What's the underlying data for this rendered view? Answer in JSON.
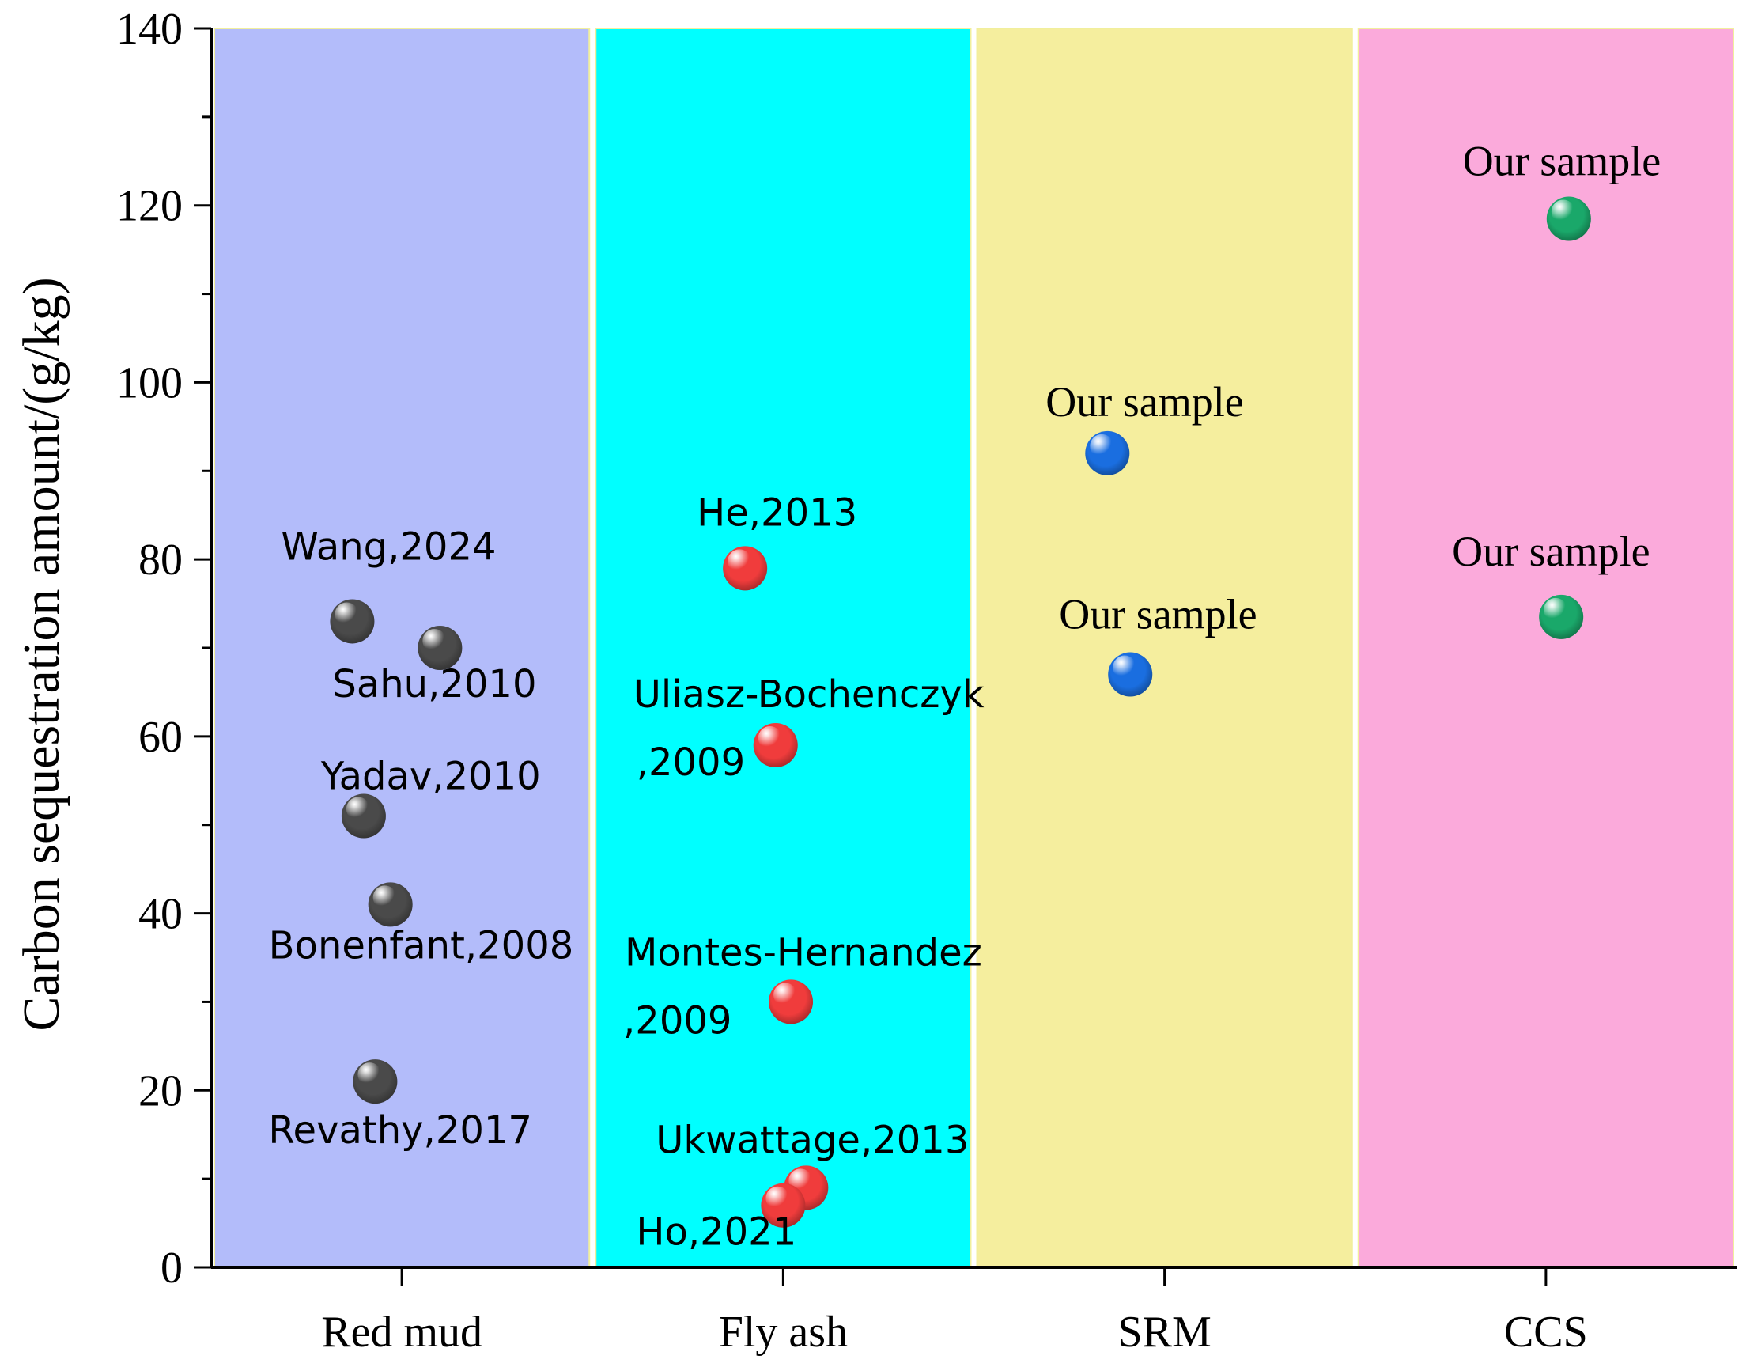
{
  "chart_data": {
    "type": "scatter",
    "title": "",
    "xlabel": "",
    "ylabel": "Carbon sequestration amount/(g/kg)",
    "ylim": [
      0,
      140
    ],
    "yticks": [
      0,
      20,
      40,
      60,
      80,
      100,
      120,
      140
    ],
    "grid": false,
    "categories": [
      "Red mud",
      "Fly ash",
      "SRM",
      "CCS"
    ],
    "band_colors": [
      "#b3bcfa",
      "#00ffff",
      "#f5ee9e",
      "#fbaadb"
    ],
    "series": [
      {
        "name": "Red mud",
        "color": "#4a4a4a",
        "points": [
          {
            "x": 0.87,
            "y": 73,
            "label": "Wang,2024"
          },
          {
            "x": 1.1,
            "y": 70,
            "label": "Sahu,2010"
          },
          {
            "x": 0.9,
            "y": 51,
            "label": "Yadav,2010"
          },
          {
            "x": 0.97,
            "y": 41,
            "label": "Bonenfant,2008"
          },
          {
            "x": 0.93,
            "y": 21,
            "label": "Revathy,2017"
          }
        ]
      },
      {
        "name": "Fly ash",
        "color": "#f03c3c",
        "points": [
          {
            "x": 1.9,
            "y": 79,
            "label": "He,2013"
          },
          {
            "x": 1.98,
            "y": 59,
            "label": "Uliasz-Bochenczyk,2009"
          },
          {
            "x": 2.02,
            "y": 30,
            "label": "Montes-Hernandez,2009"
          },
          {
            "x": 2.06,
            "y": 9,
            "label": "Ukwattage,2013"
          },
          {
            "x": 2.0,
            "y": 7,
            "label": "Ho,2021"
          }
        ]
      },
      {
        "name": "SRM",
        "color": "#1a6ee0",
        "points": [
          {
            "x": 2.85,
            "y": 92,
            "label": "Our sample"
          },
          {
            "x": 2.91,
            "y": 67,
            "label": "Our sample"
          }
        ]
      },
      {
        "name": "CCS",
        "color": "#1aa86a",
        "points": [
          {
            "x": 4.06,
            "y": 118.5,
            "label": "Our sample"
          },
          {
            "x": 4.04,
            "y": 73.5,
            "label": "Our sample"
          }
        ]
      }
    ]
  }
}
